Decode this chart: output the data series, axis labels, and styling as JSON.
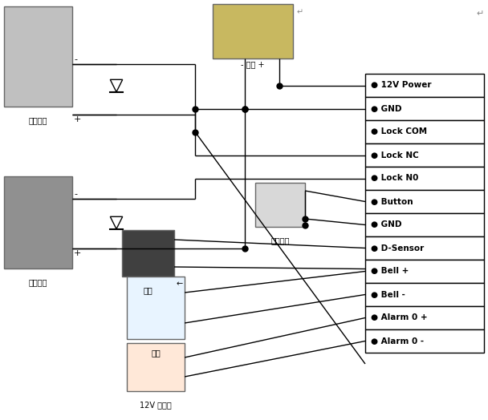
{
  "fig_width": 6.08,
  "fig_height": 5.24,
  "dpi": 100,
  "bg_color": "#ffffff",
  "terminal_labels": [
    "12V Power",
    "GND",
    "Lock COM",
    "Lock NC",
    "Lock N0",
    "Button",
    "GND",
    "D-Sensor",
    "Bell +",
    "Bell -",
    "Alarm 0 +",
    "Alarm 0 -"
  ],
  "line_color": "#000000",
  "dot_color": "#000000",
  "box_outline": "#000000",
  "text_color": "#000000",
  "img_fill_lock1": "#c8c8c8",
  "img_fill_lock2": "#888888",
  "img_fill_power": "#b0a060",
  "img_fill_sensor": "#333333",
  "img_fill_button": "#cccccc",
  "img_fill_bell": "#ddeeff",
  "img_fill_alarm": "#ffddcc"
}
